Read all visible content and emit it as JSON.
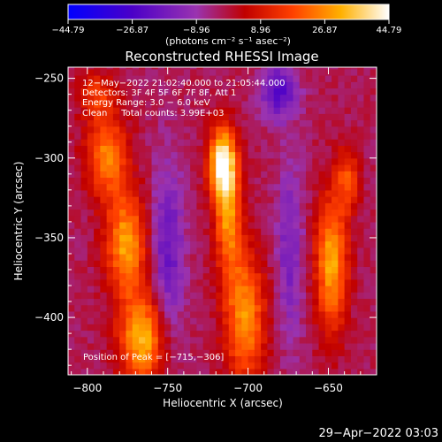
{
  "chart_data": {
    "type": "heatmap",
    "title": "Reconstructed RHESSI Image",
    "xlabel": "Heliocentric X (arcsec)",
    "ylabel": "Heliocentric Y (arcsec)",
    "xlim": [
      -812,
      -620
    ],
    "ylim": [
      -436,
      -243
    ],
    "xticks": [
      -800,
      -750,
      -700,
      -650
    ],
    "yticks": [
      -250,
      -300,
      -350,
      -400
    ],
    "xtick_labels": [
      "−800",
      "−750",
      "−700",
      "−650"
    ],
    "ytick_labels": [
      "−250",
      "−300",
      "−350",
      "−400"
    ],
    "colorbar": {
      "min": -44.79,
      "max": 44.79,
      "tick_values": [
        -44.79,
        -26.87,
        -8.96,
        8.96,
        26.87,
        44.79
      ],
      "tick_labels": [
        "−44.79",
        "−26.87",
        "−8.96",
        "8.96",
        "26.87",
        "44.79"
      ],
      "unit_label": "(photons cm⁻² s⁻¹ asec⁻²)",
      "colormap": "rhessi-blue-purple-red-yellow-white"
    },
    "info": {
      "time": "12−May−2022 21:02:40.000 to 21:05:44.000",
      "detectors": "Detectors: 3F 4F 5F 6F 7F 8F, Att 1",
      "energy": "Energy Range: 3.0 − 6.0 keV",
      "clean": "Clean     Total counts: 3.99E+03"
    },
    "peak_label": "Position of Peak = [−715,−306]",
    "peak": [
      -715,
      -306
    ],
    "sources": [
      {
        "x": -718,
        "y": -305,
        "sx": 6,
        "sy": 16,
        "amp": 44
      },
      {
        "x": -714,
        "y": -340,
        "sx": 6,
        "sy": 25,
        "amp": 28
      },
      {
        "x": -704,
        "y": -402,
        "sx": 9,
        "sy": 28,
        "amp": 30
      },
      {
        "x": -768,
        "y": -415,
        "sx": 10,
        "sy": 20,
        "amp": 35
      },
      {
        "x": -778,
        "y": -355,
        "sx": 9,
        "sy": 22,
        "amp": 32
      },
      {
        "x": -790,
        "y": -300,
        "sx": 9,
        "sy": 18,
        "amp": 28
      },
      {
        "x": -650,
        "y": -368,
        "sx": 7,
        "sy": 30,
        "amp": 33
      },
      {
        "x": -640,
        "y": -315,
        "sx": 5,
        "sy": 14,
        "amp": 20
      },
      {
        "x": -796,
        "y": -262,
        "sx": 8,
        "sy": 10,
        "amp": 16
      },
      {
        "x": -683,
        "y": -260,
        "sx": 8,
        "sy": 12,
        "amp": -22
      },
      {
        "x": -752,
        "y": -360,
        "sx": 7,
        "sy": 40,
        "amp": -18
      },
      {
        "x": -676,
        "y": -360,
        "sx": 6,
        "sy": 40,
        "amp": -14
      }
    ]
  },
  "footer": {
    "timestamp": "29−Apr−2022 03:03"
  }
}
